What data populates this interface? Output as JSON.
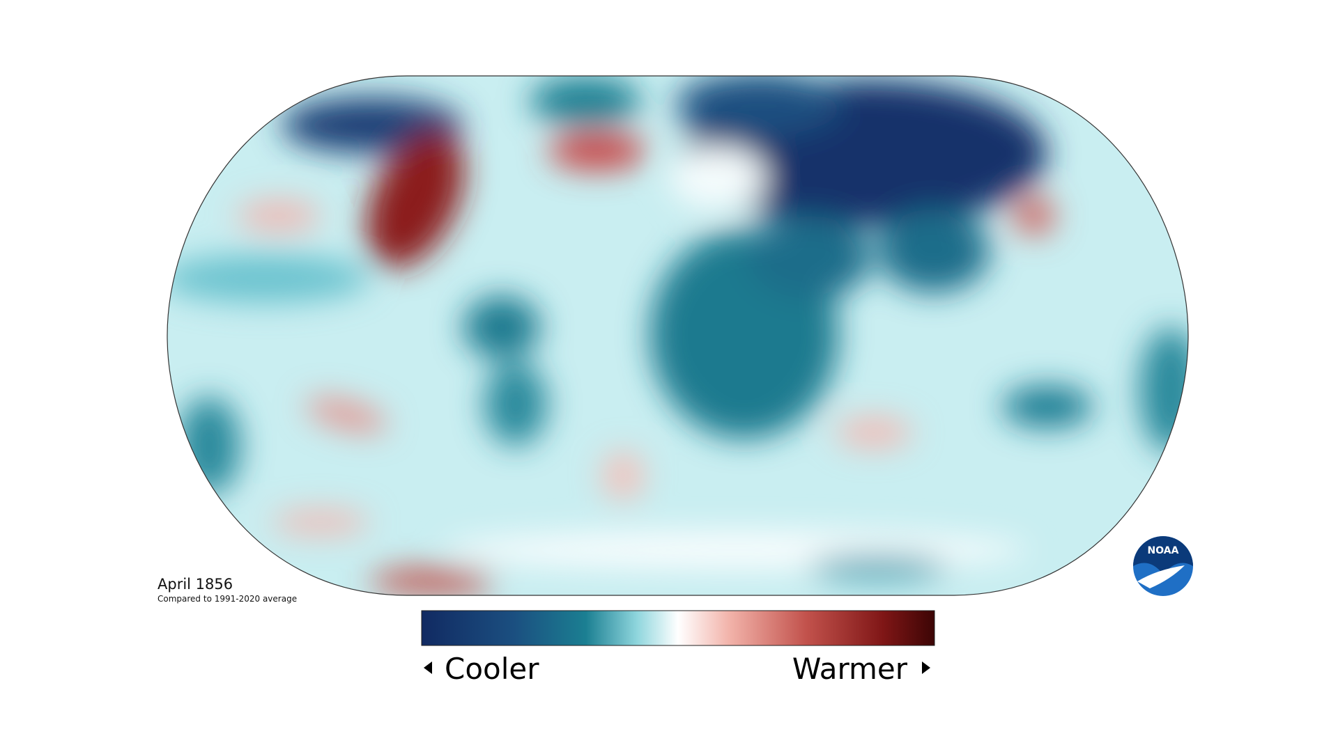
{
  "date_label": "April 1856",
  "subtitle": "Compared to 1991-2020 average",
  "legend": {
    "low": "Cooler",
    "high": "Warmer"
  },
  "logo": "NOAA"
}
